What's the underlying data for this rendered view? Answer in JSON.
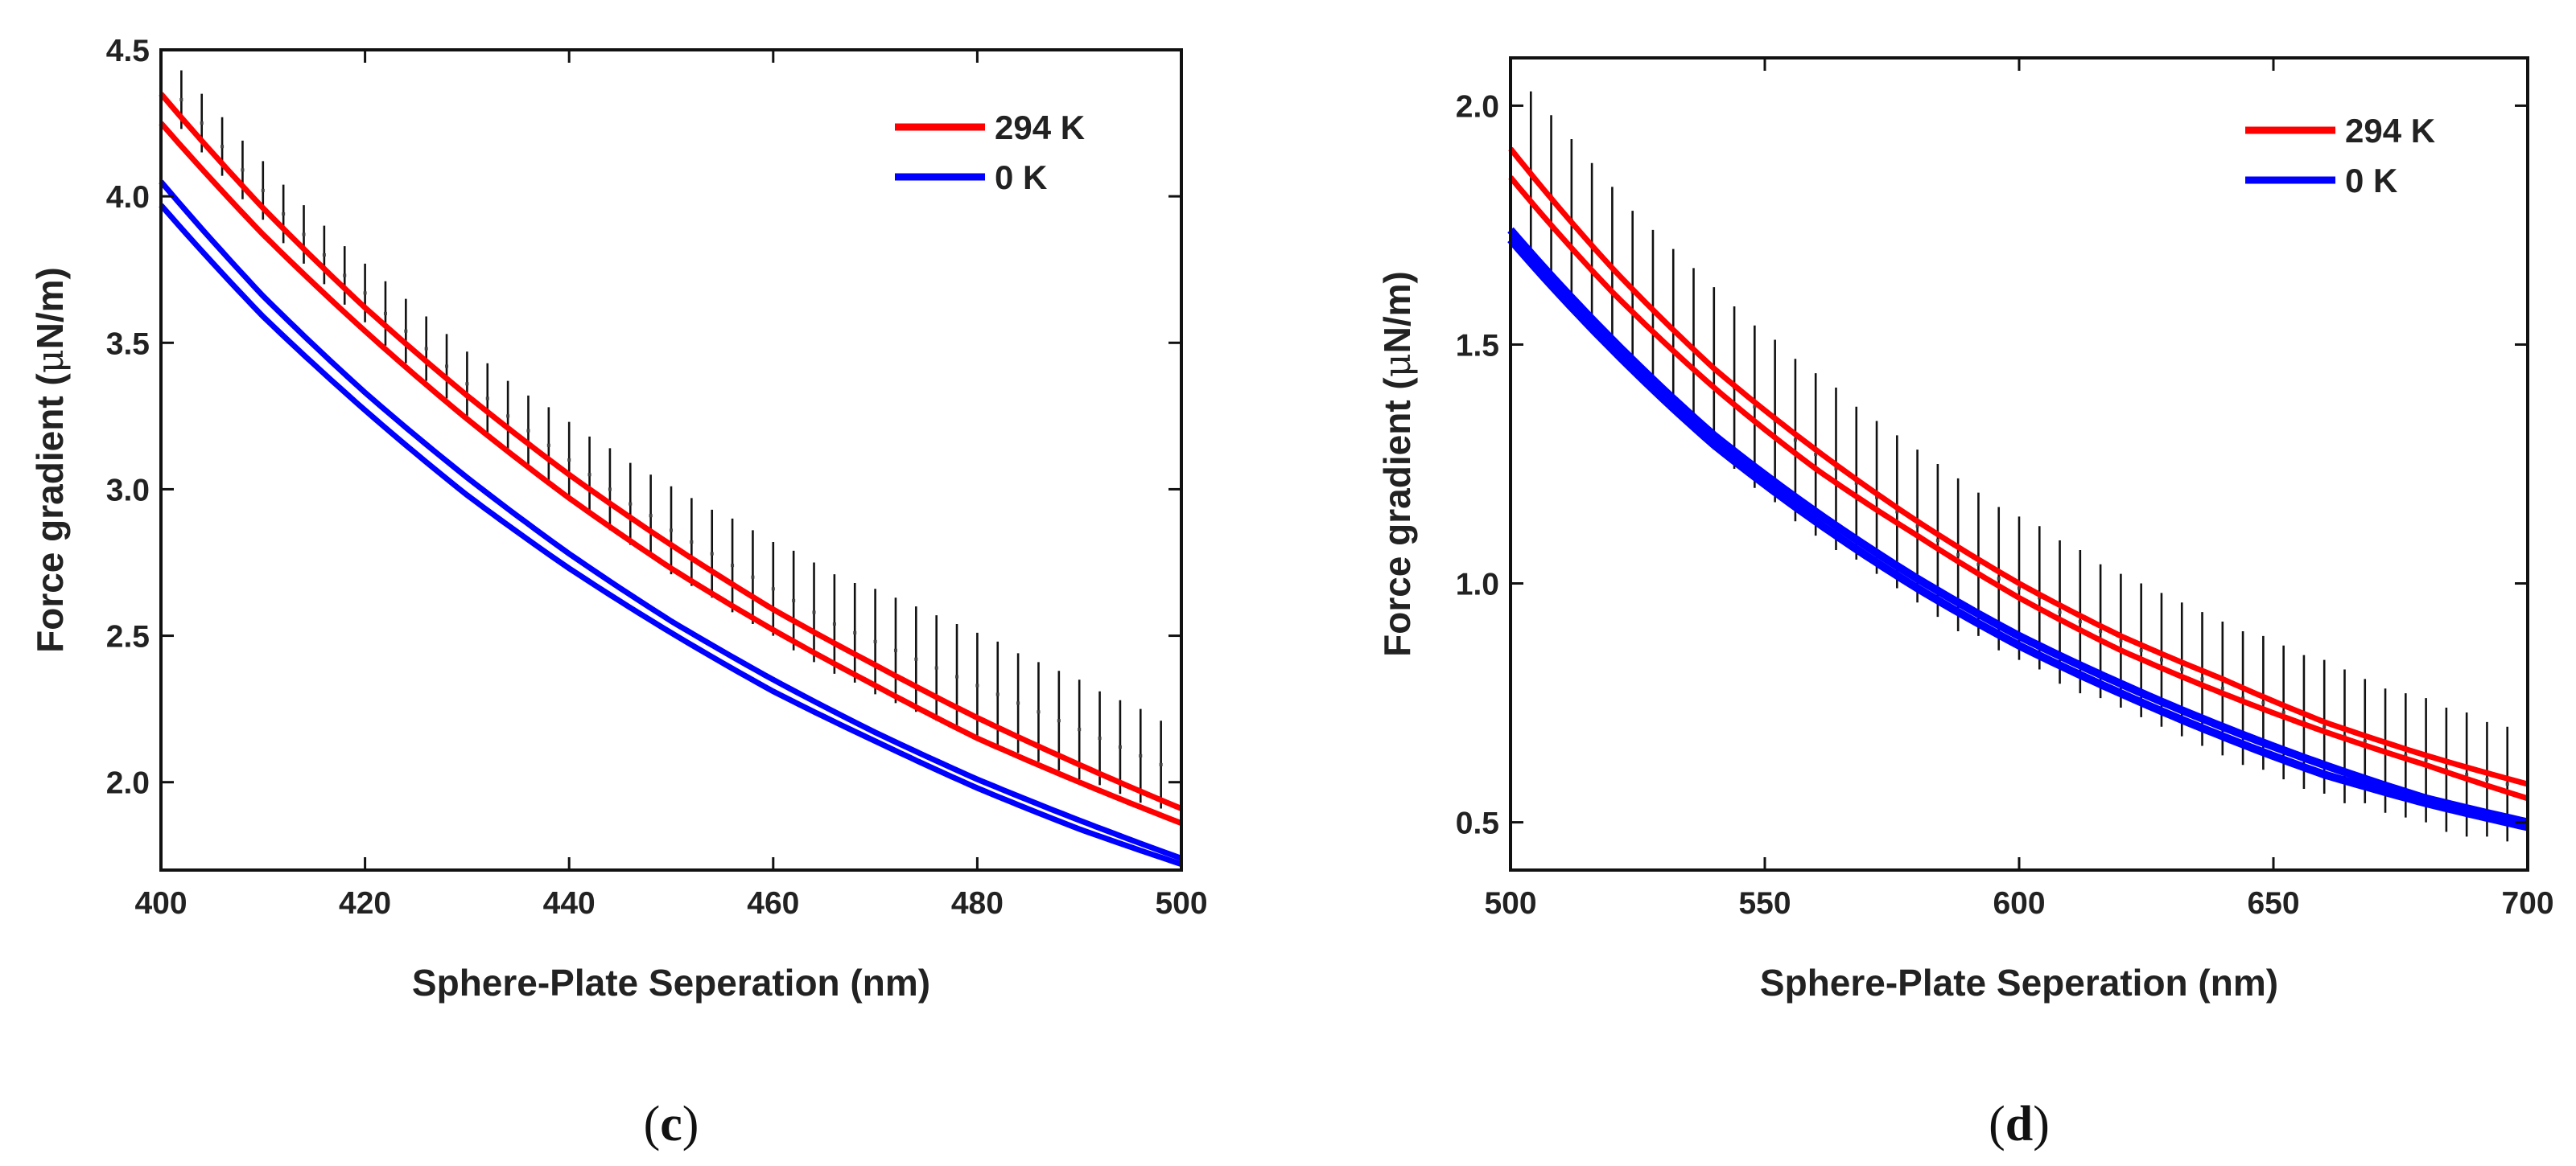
{
  "chart_data": [
    {
      "type": "line",
      "panel_label": "c",
      "xlabel": "Sphere-Plate Seperation (nm)",
      "ylabel_text": "Force gradient (",
      "ylabel_mu": "μ",
      "ylabel_unit": "N/m)",
      "xlim": [
        400,
        500
      ],
      "ylim": [
        1.7,
        4.5
      ],
      "xticks": [
        400,
        420,
        440,
        460,
        480,
        500
      ],
      "xtick_labels": [
        "400",
        "420",
        "440",
        "460",
        "480",
        "500"
      ],
      "yticks": [
        2.0,
        2.5,
        3.0,
        3.5,
        4.0,
        4.5
      ],
      "ytick_labels": [
        "2.0",
        "2.5",
        "3.0",
        "3.5",
        "4.0",
        "4.5"
      ],
      "legend_position": "top-right",
      "series": [
        {
          "name": "294 K",
          "color": "#ff0000",
          "band": true,
          "x": [
            400,
            410,
            420,
            430,
            440,
            450,
            460,
            470,
            480,
            490,
            500
          ],
          "upper": [
            4.35,
            3.96,
            3.62,
            3.32,
            3.05,
            2.81,
            2.59,
            2.4,
            2.22,
            2.06,
            1.91
          ],
          "lower": [
            4.25,
            3.87,
            3.54,
            3.24,
            2.97,
            2.73,
            2.52,
            2.33,
            2.15,
            2.0,
            1.86
          ]
        },
        {
          "name": "0 K",
          "color": "#0000ff",
          "band": true,
          "x": [
            400,
            410,
            420,
            430,
            440,
            450,
            460,
            470,
            480,
            490,
            500
          ],
          "upper": [
            4.05,
            3.66,
            3.33,
            3.04,
            2.78,
            2.55,
            2.35,
            2.17,
            2.01,
            1.87,
            1.74
          ],
          "lower": [
            3.97,
            3.59,
            3.27,
            2.98,
            2.73,
            2.51,
            2.31,
            2.14,
            1.98,
            1.84,
            1.72
          ]
        }
      ],
      "measured": {
        "x": [
          402,
          404,
          406,
          408,
          410,
          412,
          414,
          416,
          418,
          420,
          422,
          424,
          426,
          428,
          430,
          432,
          434,
          436,
          438,
          440,
          442,
          444,
          446,
          448,
          450,
          452,
          454,
          456,
          458,
          460,
          462,
          464,
          466,
          468,
          470,
          472,
          474,
          476,
          478,
          480,
          482,
          484,
          486,
          488,
          490,
          492,
          494,
          496,
          498
        ],
        "y": [
          4.33,
          4.25,
          4.17,
          4.09,
          4.02,
          3.94,
          3.87,
          3.8,
          3.73,
          3.67,
          3.6,
          3.54,
          3.48,
          3.42,
          3.36,
          3.31,
          3.25,
          3.2,
          3.15,
          3.1,
          3.05,
          3.0,
          2.95,
          2.91,
          2.86,
          2.82,
          2.78,
          2.74,
          2.7,
          2.66,
          2.62,
          2.58,
          2.54,
          2.51,
          2.48,
          2.45,
          2.42,
          2.39,
          2.36,
          2.33,
          2.3,
          2.27,
          2.24,
          2.21,
          2.18,
          2.15,
          2.12,
          2.09,
          2.06
        ],
        "err": [
          0.1,
          0.1,
          0.1,
          0.1,
          0.1,
          0.1,
          0.1,
          0.1,
          0.1,
          0.1,
          0.11,
          0.11,
          0.11,
          0.11,
          0.11,
          0.12,
          0.12,
          0.12,
          0.13,
          0.13,
          0.13,
          0.14,
          0.14,
          0.14,
          0.15,
          0.15,
          0.15,
          0.16,
          0.16,
          0.16,
          0.17,
          0.17,
          0.17,
          0.17,
          0.18,
          0.18,
          0.18,
          0.18,
          0.18,
          0.18,
          0.18,
          0.17,
          0.17,
          0.17,
          0.17,
          0.16,
          0.16,
          0.16,
          0.15
        ]
      }
    },
    {
      "type": "line",
      "panel_label": "d",
      "xlabel": "Sphere-Plate Seperation (nm)",
      "ylabel_text": "Force gradient (",
      "ylabel_mu": "μ",
      "ylabel_unit": "N/m)",
      "xlim": [
        500,
        700
      ],
      "ylim": [
        0.4,
        2.1
      ],
      "xticks": [
        500,
        550,
        600,
        650,
        700
      ],
      "xtick_labels": [
        "500",
        "550",
        "600",
        "650",
        "700"
      ],
      "yticks": [
        0.5,
        1.0,
        1.5,
        2.0
      ],
      "ytick_labels": [
        "0.5",
        "1.0",
        "1.5",
        "2.0"
      ],
      "legend_position": "top-right",
      "series": [
        {
          "name": "294 K",
          "color": "#ff0000",
          "band": true,
          "x": [
            500,
            520,
            540,
            560,
            580,
            600,
            620,
            640,
            660,
            680,
            700
          ],
          "upper": [
            1.91,
            1.66,
            1.45,
            1.28,
            1.13,
            1.0,
            0.89,
            0.8,
            0.71,
            0.64,
            0.58
          ],
          "lower": [
            1.85,
            1.61,
            1.41,
            1.24,
            1.1,
            0.97,
            0.86,
            0.77,
            0.69,
            0.62,
            0.55
          ]
        },
        {
          "name": "0 K",
          "color": "#0000ff",
          "band": false,
          "x": [
            500,
            520,
            540,
            560,
            580,
            600,
            620,
            640,
            660,
            680,
            700
          ],
          "upper": [
            1.74,
            1.51,
            1.31,
            1.15,
            1.01,
            0.89,
            0.79,
            0.7,
            0.62,
            0.55,
            0.5
          ],
          "lower": [
            1.72,
            1.49,
            1.29,
            1.13,
            0.99,
            0.87,
            0.77,
            0.68,
            0.6,
            0.54,
            0.49
          ]
        }
      ],
      "measured": {
        "x": [
          504,
          508,
          512,
          516,
          520,
          524,
          528,
          532,
          536,
          540,
          544,
          548,
          552,
          556,
          560,
          564,
          568,
          572,
          576,
          580,
          584,
          588,
          592,
          596,
          600,
          604,
          608,
          612,
          616,
          620,
          624,
          628,
          632,
          636,
          640,
          644,
          648,
          652,
          656,
          660,
          664,
          668,
          672,
          676,
          680,
          684,
          688,
          692,
          696
        ],
        "y": [
          1.86,
          1.81,
          1.76,
          1.71,
          1.66,
          1.61,
          1.57,
          1.53,
          1.49,
          1.45,
          1.41,
          1.37,
          1.34,
          1.3,
          1.27,
          1.24,
          1.21,
          1.18,
          1.15,
          1.12,
          1.09,
          1.06,
          1.04,
          1.01,
          0.99,
          0.97,
          0.94,
          0.92,
          0.9,
          0.88,
          0.86,
          0.84,
          0.82,
          0.8,
          0.78,
          0.76,
          0.75,
          0.73,
          0.71,
          0.7,
          0.68,
          0.67,
          0.65,
          0.64,
          0.63,
          0.61,
          0.6,
          0.59,
          0.58
        ],
        "err": [
          0.17,
          0.17,
          0.17,
          0.17,
          0.17,
          0.17,
          0.17,
          0.17,
          0.17,
          0.17,
          0.17,
          0.17,
          0.17,
          0.17,
          0.17,
          0.17,
          0.16,
          0.16,
          0.16,
          0.16,
          0.16,
          0.16,
          0.15,
          0.15,
          0.15,
          0.15,
          0.15,
          0.15,
          0.14,
          0.14,
          0.14,
          0.14,
          0.14,
          0.14,
          0.14,
          0.14,
          0.14,
          0.14,
          0.14,
          0.14,
          0.14,
          0.13,
          0.13,
          0.13,
          0.13,
          0.13,
          0.13,
          0.12,
          0.12
        ]
      }
    }
  ]
}
